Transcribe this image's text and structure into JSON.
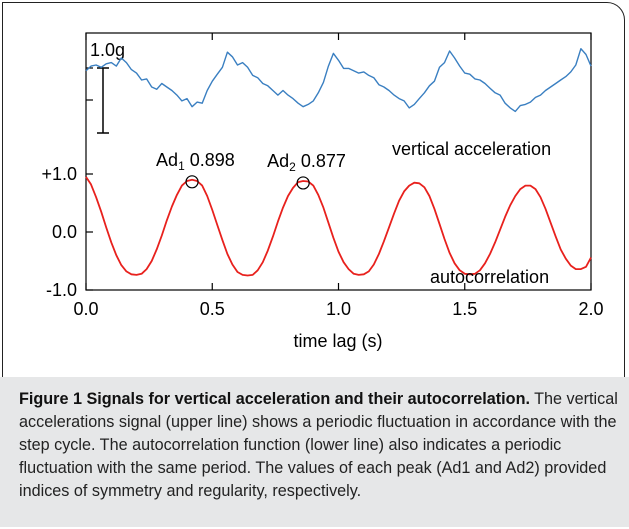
{
  "chart_data": {
    "type": "line",
    "xlabel": "time lag (s)",
    "xlim": [
      0.0,
      2.0
    ],
    "x_ticks": [
      "0.0",
      "0.5",
      "1.0",
      "1.5",
      "2.0"
    ],
    "x_tick_values": [
      0.0,
      0.5,
      1.0,
      1.5,
      2.0
    ],
    "y_ticks": [
      "+1.0",
      "0.0",
      "-1.0"
    ],
    "y_tick_values": [
      1.0,
      0.0,
      -1.0
    ],
    "ylim": [
      -1.0,
      1.0
    ],
    "scale_bar_label": "1.0g",
    "grid": false,
    "series": [
      {
        "name": "vertical acceleration",
        "color": "#3a7fc1",
        "x": [
          0.0,
          0.02,
          0.04,
          0.06,
          0.08,
          0.1,
          0.12,
          0.14,
          0.16,
          0.18,
          0.2,
          0.22,
          0.24,
          0.26,
          0.28,
          0.3,
          0.32,
          0.34,
          0.36,
          0.38,
          0.4,
          0.42,
          0.44,
          0.46,
          0.48,
          0.5,
          0.52,
          0.54,
          0.56,
          0.58,
          0.6,
          0.62,
          0.64,
          0.66,
          0.68,
          0.7,
          0.72,
          0.74,
          0.76,
          0.78,
          0.8,
          0.82,
          0.84,
          0.86,
          0.88,
          0.9,
          0.92,
          0.94,
          0.96,
          0.98,
          1.0,
          1.02,
          1.04,
          1.06,
          1.08,
          1.1,
          1.12,
          1.14,
          1.16,
          1.18,
          1.2,
          1.22,
          1.24,
          1.26,
          1.28,
          1.3,
          1.32,
          1.34,
          1.36,
          1.38,
          1.4,
          1.42,
          1.44,
          1.46,
          1.48,
          1.5,
          1.52,
          1.54,
          1.56,
          1.58,
          1.6,
          1.62,
          1.64,
          1.66,
          1.68,
          1.7,
          1.72,
          1.74,
          1.76,
          1.78,
          1.8,
          1.82,
          1.84,
          1.86,
          1.88,
          1.9,
          1.92,
          1.94,
          1.96,
          1.98,
          2.0
        ],
        "y": [
          2.78,
          2.86,
          2.88,
          2.84,
          2.9,
          2.92,
          2.86,
          3.0,
          2.92,
          2.8,
          2.74,
          2.62,
          2.64,
          2.5,
          2.46,
          2.56,
          2.5,
          2.44,
          2.36,
          2.26,
          2.3,
          2.16,
          2.24,
          2.22,
          2.44,
          2.6,
          2.72,
          2.84,
          3.1,
          3.02,
          2.88,
          2.92,
          2.84,
          2.7,
          2.66,
          2.56,
          2.52,
          2.44,
          2.36,
          2.44,
          2.36,
          2.3,
          2.22,
          2.16,
          2.2,
          2.26,
          2.4,
          2.58,
          2.86,
          3.08,
          2.96,
          2.82,
          2.82,
          2.78,
          2.74,
          2.76,
          2.7,
          2.66,
          2.54,
          2.5,
          2.44,
          2.36,
          2.3,
          2.26,
          2.14,
          2.2,
          2.3,
          2.4,
          2.52,
          2.6,
          2.84,
          2.92,
          3.12,
          3.0,
          2.86,
          2.74,
          2.72,
          2.64,
          2.62,
          2.56,
          2.48,
          2.4,
          2.36,
          2.22,
          2.14,
          2.08,
          2.18,
          2.2,
          2.24,
          2.32,
          2.36,
          2.44,
          2.5,
          2.56,
          2.62,
          2.68,
          2.76,
          2.88,
          3.16,
          3.06,
          2.86
        ]
      },
      {
        "name": "autocorrelation",
        "color": "#e8211d",
        "x": [
          0.0,
          0.02,
          0.04,
          0.06,
          0.08,
          0.1,
          0.12,
          0.14,
          0.16,
          0.18,
          0.2,
          0.22,
          0.24,
          0.26,
          0.28,
          0.3,
          0.32,
          0.34,
          0.36,
          0.38,
          0.4,
          0.42,
          0.44,
          0.46,
          0.48,
          0.5,
          0.52,
          0.54,
          0.56,
          0.58,
          0.6,
          0.62,
          0.64,
          0.66,
          0.68,
          0.7,
          0.72,
          0.74,
          0.76,
          0.78,
          0.8,
          0.82,
          0.84,
          0.86,
          0.88,
          0.9,
          0.92,
          0.94,
          0.96,
          0.98,
          1.0,
          1.02,
          1.04,
          1.06,
          1.08,
          1.1,
          1.12,
          1.14,
          1.16,
          1.18,
          1.2,
          1.22,
          1.24,
          1.26,
          1.28,
          1.3,
          1.32,
          1.34,
          1.36,
          1.38,
          1.4,
          1.42,
          1.44,
          1.46,
          1.48,
          1.5,
          1.52,
          1.54,
          1.56,
          1.58,
          1.6,
          1.62,
          1.64,
          1.66,
          1.68,
          1.7,
          1.72,
          1.74,
          1.76,
          1.78,
          1.8,
          1.82,
          1.84,
          1.86,
          1.88,
          1.9,
          1.92,
          1.94,
          1.96,
          1.98,
          2.0
        ],
        "y": [
          0.95,
          0.82,
          0.6,
          0.35,
          0.08,
          -0.18,
          -0.4,
          -0.57,
          -0.68,
          -0.73,
          -0.74,
          -0.72,
          -0.64,
          -0.5,
          -0.3,
          -0.06,
          0.2,
          0.44,
          0.64,
          0.8,
          0.88,
          0.9,
          0.88,
          0.8,
          0.62,
          0.38,
          0.12,
          -0.14,
          -0.38,
          -0.56,
          -0.69,
          -0.74,
          -0.75,
          -0.74,
          -0.66,
          -0.52,
          -0.32,
          -0.08,
          0.18,
          0.42,
          0.62,
          0.76,
          0.86,
          0.88,
          0.87,
          0.8,
          0.64,
          0.42,
          0.16,
          -0.1,
          -0.34,
          -0.52,
          -0.64,
          -0.72,
          -0.74,
          -0.73,
          -0.68,
          -0.56,
          -0.38,
          -0.16,
          0.08,
          0.32,
          0.54,
          0.7,
          0.8,
          0.85,
          0.84,
          0.77,
          0.62,
          0.4,
          0.14,
          -0.12,
          -0.36,
          -0.54,
          -0.66,
          -0.72,
          -0.73,
          -0.72,
          -0.66,
          -0.54,
          -0.38,
          -0.18,
          0.04,
          0.26,
          0.46,
          0.62,
          0.74,
          0.8,
          0.8,
          0.74,
          0.6,
          0.4,
          0.16,
          -0.08,
          -0.3,
          -0.46,
          -0.58,
          -0.64,
          -0.64,
          -0.6,
          -0.44
        ]
      }
    ],
    "annotations": [
      {
        "label_main": "Ad",
        "label_sub": "1",
        "value": "0.898",
        "x": 0.42,
        "y": 0.9
      },
      {
        "label_main": "Ad",
        "label_sub": "2",
        "value": "0.877",
        "x": 0.86,
        "y": 0.88
      }
    ]
  },
  "caption": {
    "title": "Figure 1 Signals for vertical acceleration and their autocorrelation.",
    "body": " The vertical accelerations signal (upper line) shows a periodic fluctuation in accordance with the step cycle. The autocorrelation function (lower line) also indicates a periodic fluctuation with the same period. The values of each peak (Ad1 and Ad2) provided indices of symmetry and regularity, respectively."
  }
}
